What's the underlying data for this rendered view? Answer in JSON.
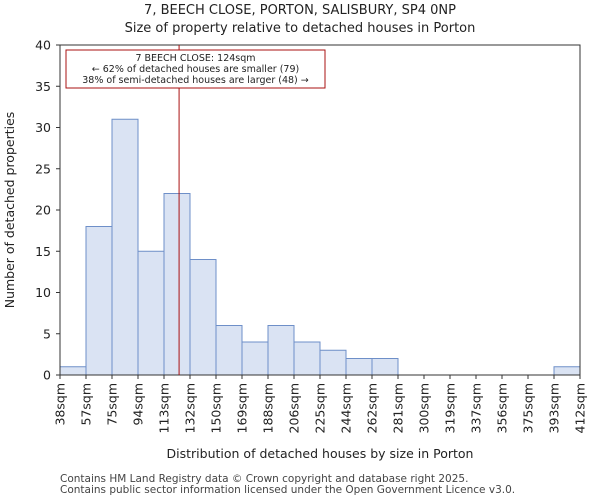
{
  "header": {
    "title_line1": "7, BEECH CLOSE, PORTON, SALISBURY, SP4 0NP",
    "title_line2": "Size of property relative to detached houses in Porton"
  },
  "footer": {
    "line1": "Contains HM Land Registry data © Crown copyright and database right 2025.",
    "line2": "Contains public sector information licensed under the Open Government Licence v3.0."
  },
  "colors": {
    "bar_fill": "#dae3f3",
    "bar_stroke": "#6e8fc8",
    "marker_line": "#aa1111",
    "annotation_border": "#aa1111"
  },
  "chart_data": {
    "type": "bar",
    "title": "Size of property relative to detached houses in Porton",
    "xlabel": "Distribution of detached houses by size in Porton",
    "ylabel": "Number of detached properties",
    "ylim": [
      0,
      40
    ],
    "yticks": [
      0,
      5,
      10,
      15,
      20,
      25,
      30,
      35,
      40
    ],
    "bin_edges": [
      "38sqm",
      "57sqm",
      "75sqm",
      "94sqm",
      "113sqm",
      "132sqm",
      "150sqm",
      "169sqm",
      "188sqm",
      "206sqm",
      "225sqm",
      "244sqm",
      "262sqm",
      "281sqm",
      "300sqm",
      "319sqm",
      "337sqm",
      "356sqm",
      "375sqm",
      "393sqm",
      "412sqm"
    ],
    "values": [
      1,
      18,
      31,
      15,
      22,
      14,
      6,
      4,
      6,
      4,
      3,
      2,
      2,
      0,
      0,
      0,
      0,
      0,
      0,
      1
    ],
    "marker": {
      "value": 124,
      "bin_index_position": 4.58
    },
    "annotation": {
      "line1": "7 BEECH CLOSE: 124sqm",
      "line2": "← 62% of detached houses are smaller (79)",
      "line3": "38% of semi-detached houses are larger (48) →"
    }
  }
}
